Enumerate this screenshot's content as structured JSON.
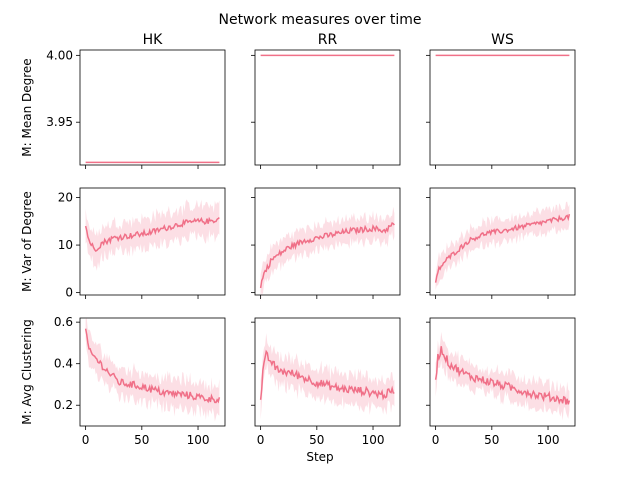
{
  "chart_data": {
    "type": "line",
    "title": "Network measures over time",
    "xlabel": "Step",
    "columns": [
      "HK",
      "RR",
      "WS"
    ],
    "line_color": "#f07088",
    "band_color": "#fcd9e0",
    "x_range": [
      0,
      119
    ],
    "xlim": [
      -5,
      124
    ],
    "xticks": [
      0,
      50,
      100
    ],
    "rows": [
      {
        "ylabel": "M: Mean Degree",
        "ylim": [
          3.918,
          4.004
        ],
        "yticks": [
          3.95,
          4.0
        ],
        "ytick_labels": [
          "3.95",
          "4.00"
        ],
        "series": [
          {
            "name": "HK",
            "band": 0,
            "noise": 0,
            "anchors": [
              [
                0,
                3.92
              ],
              [
                119,
                3.92
              ]
            ]
          },
          {
            "name": "RR",
            "band": 0,
            "noise": 0,
            "anchors": [
              [
                0,
                4.0
              ],
              [
                119,
                4.0
              ]
            ]
          },
          {
            "name": "WS",
            "band": 0,
            "noise": 0,
            "anchors": [
              [
                0,
                4.0
              ],
              [
                119,
                4.0
              ]
            ]
          }
        ]
      },
      {
        "ylabel": "M: Var of Degree",
        "ylim": [
          -0.5,
          22
        ],
        "yticks": [
          0,
          10,
          20
        ],
        "ytick_labels": [
          "0",
          "10",
          "20"
        ],
        "series": [
          {
            "name": "HK",
            "band": 3.2,
            "noise": 0.6,
            "anchors": [
              [
                0,
                14
              ],
              [
                3,
                11
              ],
              [
                8,
                9
              ],
              [
                15,
                10.5
              ],
              [
                25,
                11.5
              ],
              [
                40,
                12
              ],
              [
                55,
                12.5
              ],
              [
                70,
                13.5
              ],
              [
                85,
                14.5
              ],
              [
                100,
                15
              ],
              [
                110,
                15
              ],
              [
                119,
                15.5
              ]
            ]
          },
          {
            "name": "RR",
            "band": 2.6,
            "noise": 0.6,
            "anchors": [
              [
                0,
                1.5
              ],
              [
                3,
                4
              ],
              [
                10,
                7
              ],
              [
                25,
                9.5
              ],
              [
                40,
                11
              ],
              [
                60,
                12
              ],
              [
                80,
                13
              ],
              [
                100,
                13.5
              ],
              [
                110,
                13
              ],
              [
                119,
                14.5
              ]
            ]
          },
          {
            "name": "WS",
            "band": 2.4,
            "noise": 0.5,
            "anchors": [
              [
                0,
                2
              ],
              [
                3,
                5
              ],
              [
                10,
                7
              ],
              [
                20,
                9
              ],
              [
                30,
                11
              ],
              [
                45,
                12.5
              ],
              [
                60,
                13
              ],
              [
                80,
                14
              ],
              [
                100,
                15
              ],
              [
                119,
                16
              ]
            ]
          }
        ]
      },
      {
        "ylabel": "M: Avg Clustering",
        "ylim": [
          0.1,
          0.62
        ],
        "yticks": [
          0.2,
          0.4,
          0.6
        ],
        "ytick_labels": [
          "0.2",
          "0.4",
          "0.6"
        ],
        "series": [
          {
            "name": "HK",
            "band": 0.07,
            "noise": 0.018,
            "anchors": [
              [
                0,
                0.57
              ],
              [
                3,
                0.46
              ],
              [
                10,
                0.42
              ],
              [
                20,
                0.36
              ],
              [
                30,
                0.31
              ],
              [
                50,
                0.29
              ],
              [
                70,
                0.26
              ],
              [
                90,
                0.25
              ],
              [
                110,
                0.23
              ],
              [
                119,
                0.23
              ]
            ]
          },
          {
            "name": "RR",
            "band": 0.07,
            "noise": 0.02,
            "anchors": [
              [
                0,
                0.22
              ],
              [
                2,
                0.36
              ],
              [
                5,
                0.44
              ],
              [
                15,
                0.37
              ],
              [
                30,
                0.35
              ],
              [
                50,
                0.31
              ],
              [
                70,
                0.28
              ],
              [
                90,
                0.27
              ],
              [
                110,
                0.25
              ],
              [
                119,
                0.27
              ]
            ]
          },
          {
            "name": "WS",
            "band": 0.06,
            "noise": 0.02,
            "anchors": [
              [
                0,
                0.32
              ],
              [
                2,
                0.43
              ],
              [
                5,
                0.47
              ],
              [
                12,
                0.4
              ],
              [
                20,
                0.37
              ],
              [
                30,
                0.34
              ],
              [
                50,
                0.31
              ],
              [
                70,
                0.28
              ],
              [
                90,
                0.25
              ],
              [
                110,
                0.23
              ],
              [
                119,
                0.22
              ]
            ]
          }
        ]
      }
    ]
  }
}
